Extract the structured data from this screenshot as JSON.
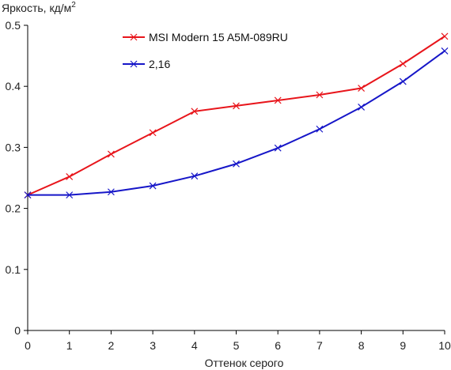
{
  "chart_data": {
    "type": "line",
    "title": "",
    "xlabel": "Оттенок серого",
    "ylabel": "Яркость, кд/м",
    "ylabel_superscript": "2",
    "x": [
      0,
      1,
      2,
      3,
      4,
      5,
      6,
      7,
      8,
      9,
      10
    ],
    "xlim": [
      0,
      10
    ],
    "ylim": [
      0,
      0.5
    ],
    "x_ticks": [
      "0",
      "1",
      "2",
      "3",
      "4",
      "5",
      "6",
      "7",
      "8",
      "9",
      "10"
    ],
    "y_ticks": [
      "0",
      "0.1",
      "0.2",
      "0.3",
      "0.4",
      "0.5"
    ],
    "y_tick_values": [
      0,
      0.1,
      0.2,
      0.3,
      0.4,
      0.5
    ],
    "grid": false,
    "legend_position": "top-center",
    "series": [
      {
        "name": "MSI Modern 15 A5M-089RU",
        "color": "#e8151b",
        "values": [
          0.222,
          0.252,
          0.289,
          0.324,
          0.359,
          0.368,
          0.377,
          0.386,
          0.397,
          0.437,
          0.482
        ]
      },
      {
        "name": "2,16",
        "color": "#1616c8",
        "values": [
          0.222,
          0.222,
          0.227,
          0.237,
          0.253,
          0.273,
          0.299,
          0.33,
          0.366,
          0.408,
          0.458
        ]
      }
    ]
  }
}
